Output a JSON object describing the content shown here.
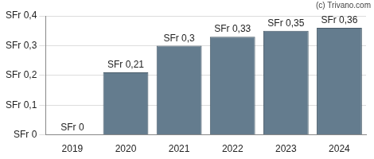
{
  "chart_data": {
    "type": "bar",
    "categories": [
      "2019",
      "2020",
      "2021",
      "2022",
      "2023",
      "2024"
    ],
    "values": [
      0,
      0.21,
      0.3,
      0.33,
      0.35,
      0.36
    ],
    "value_labels": [
      "SFr 0",
      "SFr 0,21",
      "SFr 0,3",
      "SFr 0,33",
      "SFr 0,35",
      "SFr 0,36"
    ],
    "data_labels": true,
    "color": "#647c8e",
    "ylim": [
      0,
      0.4
    ],
    "yticks": [
      {
        "value": 0,
        "label": "SFr 0"
      },
      {
        "value": 0.1,
        "label": "SFr 0,1"
      },
      {
        "value": 0.2,
        "label": "SFr 0,2"
      },
      {
        "value": 0.3,
        "label": "SFr 0,3"
      },
      {
        "value": 0.4,
        "label": "SFr 0,4"
      }
    ],
    "grid": true,
    "annotations": [
      "(c) Trivano.com"
    ]
  }
}
